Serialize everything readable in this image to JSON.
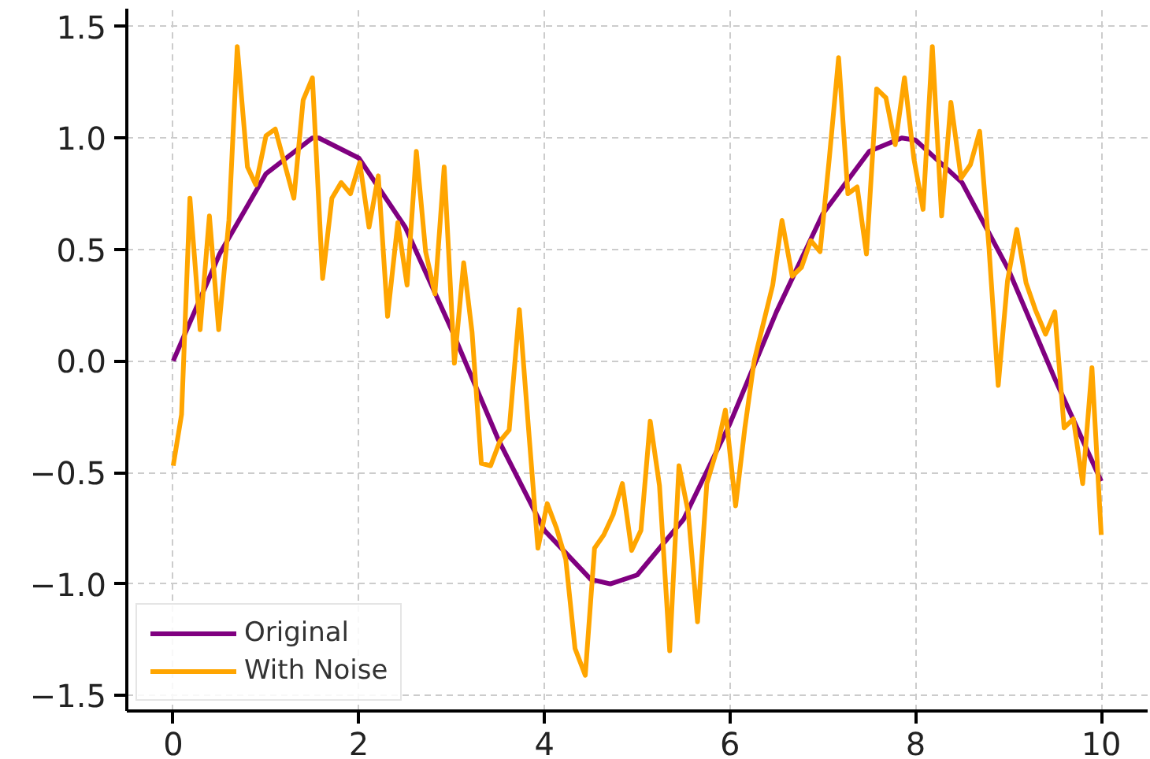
{
  "chart_data": {
    "type": "line",
    "xlim": [
      -0.5,
      10.5
    ],
    "ylim": [
      -1.57,
      1.58
    ],
    "xticks": [
      0,
      2,
      4,
      6,
      8,
      10
    ],
    "yticks": [
      {
        "value": -1.5,
        "label": "−1.5"
      },
      {
        "value": -1.0,
        "label": "−1.0"
      },
      {
        "value": -0.5,
        "label": "−0.5"
      },
      {
        "value": 0,
        "label": "0.0"
      },
      {
        "value": 0.5,
        "label": "0.5"
      },
      {
        "value": 1.0,
        "label": "1.0"
      },
      {
        "value": 1.5,
        "label": "1.5"
      }
    ],
    "grid": true,
    "legend": "bottom left",
    "line_style": "solid",
    "marker": "none",
    "series": [
      {
        "name": "Original",
        "color": "#800080",
        "x": [
          0,
          0.5,
          1,
          1.5,
          1.57,
          2,
          2.5,
          3,
          3.5,
          4,
          4.5,
          4.71,
          5,
          5.5,
          6,
          6.5,
          7,
          7.5,
          7.85,
          8,
          8.5,
          9,
          9.5,
          10
        ],
        "values": [
          0,
          0.48,
          0.84,
          1.0,
          1.0,
          0.91,
          0.6,
          0.14,
          -0.35,
          -0.76,
          -0.98,
          -1.0,
          -0.96,
          -0.71,
          -0.28,
          0.22,
          0.66,
          0.94,
          1.0,
          0.99,
          0.8,
          0.41,
          -0.08,
          -0.54
        ]
      },
      {
        "name": "With Noise",
        "color": "#ffa500",
        "x": [
          0,
          0.09,
          0.18,
          0.29,
          0.39,
          0.49,
          0.6,
          0.69,
          0.8,
          0.89,
          1.0,
          1.1,
          1.3,
          1.4,
          1.5,
          1.61,
          1.71,
          1.81,
          1.91,
          2.01,
          2.11,
          2.21,
          2.31,
          2.42,
          2.52,
          2.62,
          2.72,
          2.82,
          2.92,
          3.03,
          3.13,
          3.22,
          3.32,
          3.42,
          3.52,
          3.62,
          3.73,
          3.83,
          3.93,
          4.03,
          4.13,
          4.23,
          4.33,
          4.44,
          4.54,
          4.64,
          4.74,
          4.84,
          4.94,
          5.04,
          5.14,
          5.24,
          5.35,
          5.45,
          5.55,
          5.65,
          5.75,
          5.85,
          5.95,
          6.06,
          6.16,
          6.26,
          6.36,
          6.46,
          6.56,
          6.67,
          6.77,
          6.87,
          6.97,
          7.07,
          7.17,
          7.27,
          7.37,
          7.47,
          7.58,
          7.68,
          7.78,
          7.88,
          7.98,
          8.08,
          8.18,
          8.28,
          8.38,
          8.49,
          8.59,
          8.69,
          8.79,
          8.89,
          8.99,
          9.09,
          9.19,
          9.29,
          9.4,
          9.5,
          9.6,
          9.7,
          9.8,
          9.9,
          10.0
        ],
        "values": [
          -0.47,
          -0.24,
          0.73,
          0.14,
          0.65,
          0.14,
          0.63,
          1.41,
          0.87,
          0.79,
          1.01,
          1.04,
          0.73,
          1.17,
          1.27,
          0.37,
          0.73,
          0.8,
          0.75,
          0.89,
          0.6,
          0.83,
          0.2,
          0.62,
          0.34,
          0.94,
          0.49,
          0.3,
          0.87,
          -0.01,
          0.44,
          0.13,
          -0.46,
          -0.47,
          -0.36,
          -0.31,
          0.23,
          -0.31,
          -0.84,
          -0.64,
          -0.75,
          -0.89,
          -1.29,
          -1.41,
          -0.84,
          -0.78,
          -0.69,
          -0.55,
          -0.85,
          -0.76,
          -0.27,
          -0.56,
          -1.3,
          -0.47,
          -0.68,
          -1.17,
          -0.55,
          -0.41,
          -0.22,
          -0.65,
          -0.3,
          0.0,
          0.17,
          0.34,
          0.63,
          0.38,
          0.42,
          0.54,
          0.49,
          0.91,
          1.36,
          0.75,
          0.78,
          0.48,
          1.22,
          1.18,
          0.97,
          1.27,
          0.91,
          0.68,
          1.41,
          0.65,
          1.16,
          0.82,
          0.88,
          1.03,
          0.51,
          -0.11,
          0.36,
          0.59,
          0.35,
          0.23,
          0.12,
          0.22,
          -0.3,
          -0.26,
          -0.55,
          -0.03,
          -0.78
        ]
      }
    ]
  }
}
